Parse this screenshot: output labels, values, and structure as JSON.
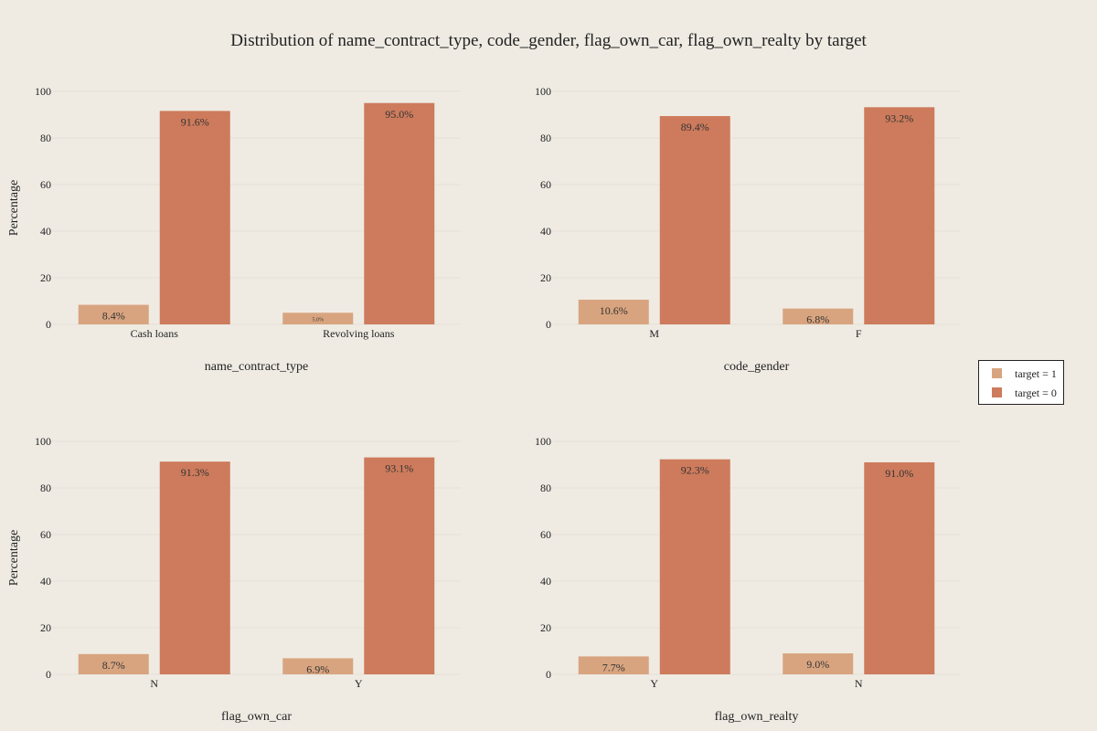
{
  "colors": {
    "background": "#efebe3",
    "target1": "#d8a47f",
    "target0": "#cd7b5c",
    "grid": "#e6e1d8"
  },
  "chart_data": {
    "type": "bar",
    "title": "Distribution of name_contract_type, code_gender, flag_own_car, flag_own_realty by target",
    "ylabel": "Percentage",
    "ylim": [
      0,
      100
    ],
    "yticks": [
      0,
      20,
      40,
      60,
      80,
      100
    ],
    "grid": true,
    "legend_placement": "right",
    "legend": [
      {
        "key": "target1",
        "label": "target = 1"
      },
      {
        "key": "target0",
        "label": "target = 0"
      }
    ],
    "subplots": [
      {
        "xlabel": "name_contract_type",
        "categories": [
          "Cash loans",
          "Revolving loans"
        ],
        "series": [
          {
            "name": "target = 1",
            "values": [
              8.4,
              5.0
            ],
            "labels": [
              "8.4%",
              "5.0%"
            ]
          },
          {
            "name": "target = 0",
            "values": [
              91.6,
              95.0
            ],
            "labels": [
              "91.6%",
              "95.0%"
            ]
          }
        ]
      },
      {
        "xlabel": "code_gender",
        "categories": [
          "M",
          "F"
        ],
        "series": [
          {
            "name": "target = 1",
            "values": [
              10.6,
              6.8
            ],
            "labels": [
              "10.6%",
              "6.8%"
            ]
          },
          {
            "name": "target = 0",
            "values": [
              89.4,
              93.2
            ],
            "labels": [
              "89.4%",
              "93.2%"
            ]
          }
        ]
      },
      {
        "xlabel": "flag_own_car",
        "categories": [
          "N",
          "Y"
        ],
        "series": [
          {
            "name": "target = 1",
            "values": [
              8.7,
              6.9
            ],
            "labels": [
              "8.7%",
              "6.9%"
            ]
          },
          {
            "name": "target = 0",
            "values": [
              91.3,
              93.1
            ],
            "labels": [
              "91.3%",
              "93.1%"
            ]
          }
        ]
      },
      {
        "xlabel": "flag_own_realty",
        "categories": [
          "Y",
          "N"
        ],
        "series": [
          {
            "name": "target = 1",
            "values": [
              7.7,
              9.0
            ],
            "labels": [
              "7.7%",
              "9.0%"
            ]
          },
          {
            "name": "target = 0",
            "values": [
              92.3,
              91.0
            ],
            "labels": [
              "92.3%",
              "91.0%"
            ]
          }
        ]
      }
    ]
  }
}
